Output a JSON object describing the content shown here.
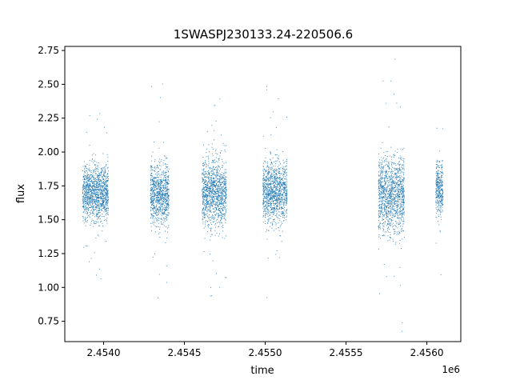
{
  "chart_data": {
    "type": "scatter",
    "title": "1SWASPJ230133.24-220506.6",
    "xlabel": "time",
    "ylabel": "flux",
    "x_offset_label": "1e6",
    "xlim": [
      2453760,
      2456210
    ],
    "ylim": [
      0.6,
      2.78
    ],
    "x_ticks": [
      2.454,
      2.4545,
      2.455,
      2.4555,
      2.456
    ],
    "x_tick_labels": [
      "2.4540",
      "2.4545",
      "2.4550",
      "2.4555",
      "2.4560"
    ],
    "y_ticks": [
      0.75,
      1.0,
      1.25,
      1.5,
      1.75,
      2.0,
      2.25,
      2.5,
      2.75
    ],
    "y_tick_labels": [
      "0.75",
      "1.00",
      "1.25",
      "1.50",
      "1.75",
      "2.00",
      "2.25",
      "2.50",
      "2.75"
    ],
    "grid": false,
    "color": "#1f77b4",
    "series": [
      {
        "observing_seasons": [
          {
            "x_range": [
              2453870,
              2454030
            ],
            "center": 1.7,
            "spread": 0.1
          },
          {
            "x_range": [
              2454290,
              2454405
            ],
            "center": 1.69,
            "spread": 0.11
          },
          {
            "x_range": [
              2454610,
              2454760
            ],
            "center": 1.7,
            "spread": 0.12
          },
          {
            "x_range": [
              2454985,
              2455135
            ],
            "center": 1.71,
            "spread": 0.11
          },
          {
            "x_range": [
              2455700,
              2455860
            ],
            "center": 1.69,
            "spread": 0.14
          },
          {
            "x_range": [
              2456055,
              2456100
            ],
            "center": 1.73,
            "spread": 0.1
          }
        ]
      }
    ]
  }
}
